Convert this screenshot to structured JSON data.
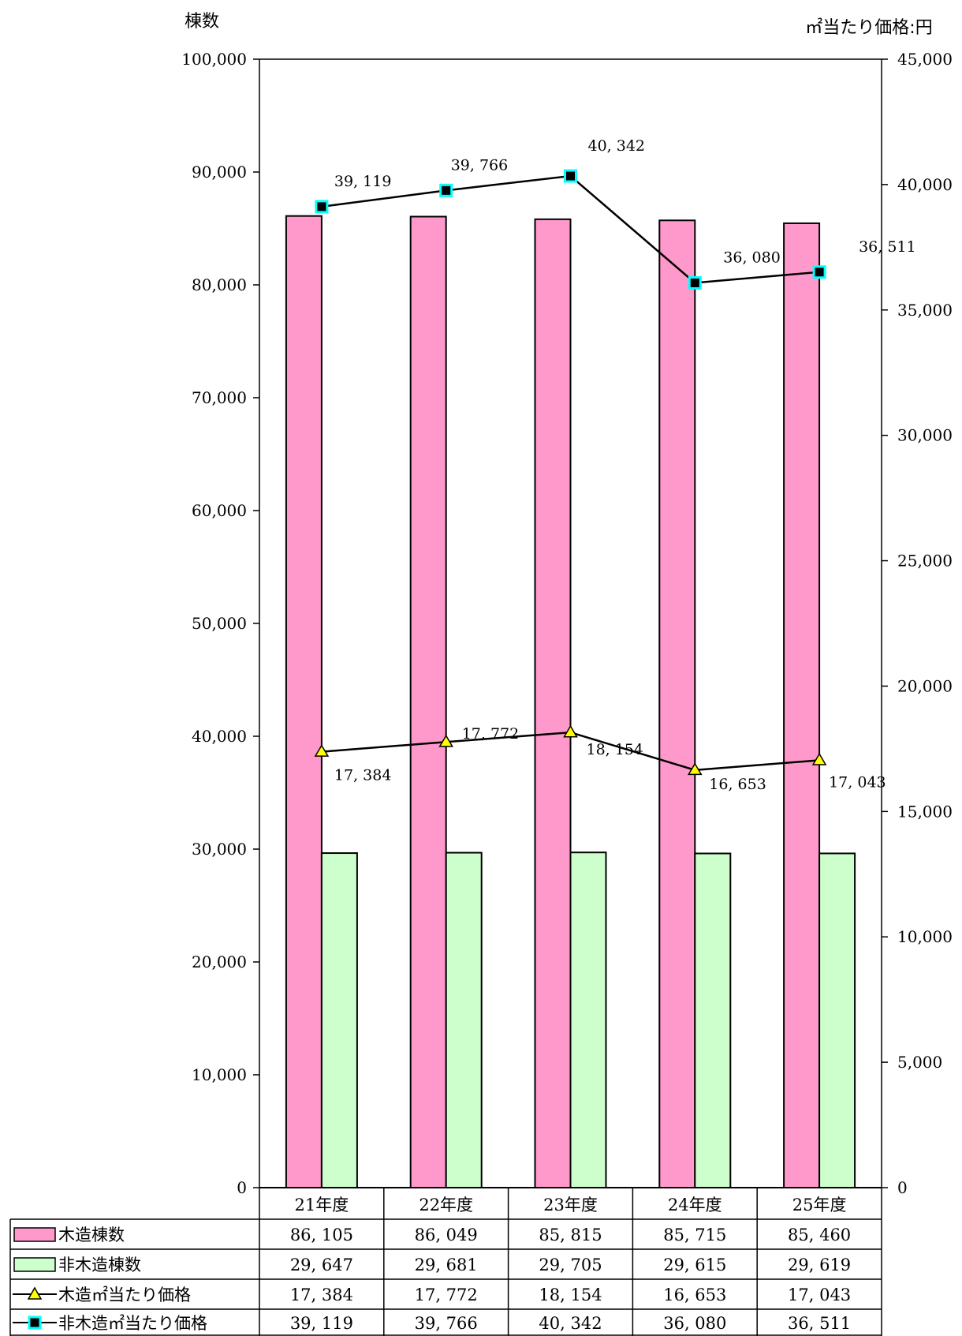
{
  "chart_data": {
    "type": "bar",
    "y_left_title": "棟数",
    "y_right_title": "㎡当たり価格:円",
    "categories": [
      "21年度",
      "22年度",
      "23年度",
      "24年度",
      "25年度"
    ],
    "y_left": {
      "min": 0,
      "max": 100000,
      "step": 10000,
      "tick_labels": [
        "0",
        "10,000",
        "20,000",
        "30,000",
        "40,000",
        "50,000",
        "60,000",
        "70,000",
        "80,000",
        "90,000",
        "100,000"
      ]
    },
    "y_right": {
      "min": 0,
      "max": 45000,
      "step": 5000,
      "tick_labels": [
        "0",
        "5,000",
        "10,000",
        "15,000",
        "20,000",
        "25,000",
        "30,000",
        "35,000",
        "40,000",
        "45,000"
      ]
    },
    "grid": false,
    "series": [
      {
        "name": "木造棟数",
        "type": "bar",
        "axis": "left",
        "color": "#ff99cc",
        "values": [
          86105,
          86049,
          85815,
          85715,
          85460
        ],
        "value_labels": [
          "86, 105",
          "86, 049",
          "85, 815",
          "85, 715",
          "85, 460"
        ]
      },
      {
        "name": "非木造棟数",
        "type": "bar",
        "axis": "left",
        "color": "#ccffcc",
        "values": [
          29647,
          29681,
          29705,
          29615,
          29619
        ],
        "value_labels": [
          "29, 647",
          "29, 681",
          "29, 705",
          "29, 615",
          "29, 619"
        ]
      },
      {
        "name": "木造㎡当たり価格",
        "type": "line",
        "axis": "right",
        "marker": "triangle",
        "marker_color": "#ffff00",
        "values": [
          17384,
          17772,
          18154,
          16653,
          17043
        ],
        "value_labels": [
          "17, 384",
          "17, 772",
          "18, 154",
          "16, 653",
          "17, 043"
        ]
      },
      {
        "name": "非木造㎡当たり価格",
        "type": "line",
        "axis": "right",
        "marker": "square",
        "marker_color": "#00ffff",
        "values": [
          39119,
          39766,
          40342,
          36080,
          36511
        ],
        "value_labels": [
          "39, 119",
          "39, 766",
          "40, 342",
          "36, 080",
          "36, 511"
        ]
      }
    ]
  }
}
